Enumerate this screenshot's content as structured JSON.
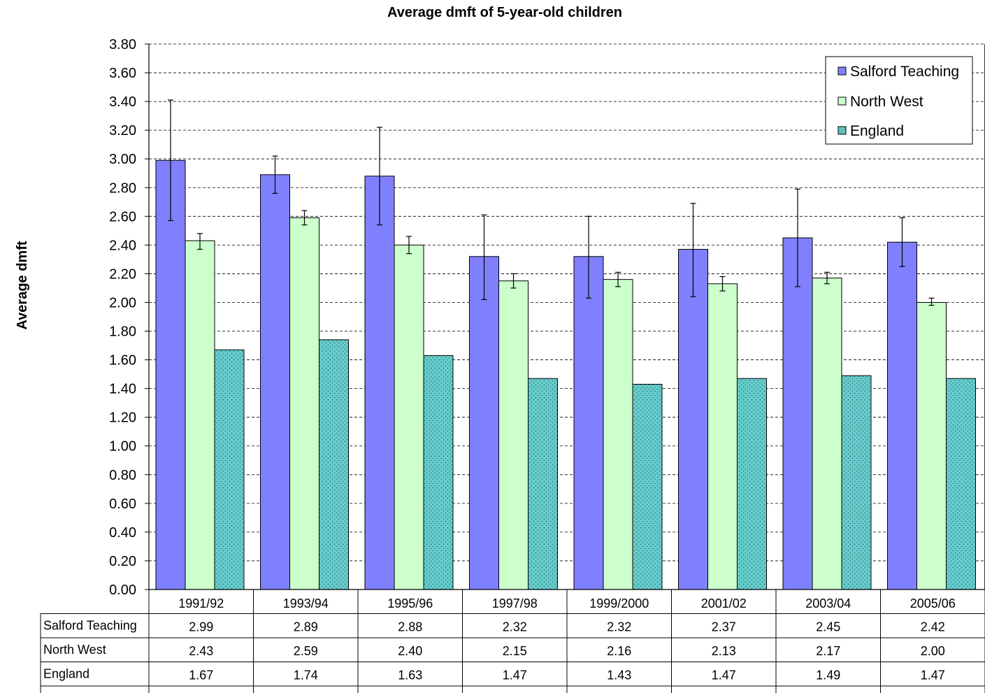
{
  "chart_data": {
    "type": "bar",
    "title": "Average dmft of 5-year-old children",
    "ylabel": "Average dmft",
    "xlabel": "",
    "ylim": [
      0,
      3.8
    ],
    "ytick_step": 0.2,
    "grid": "horizontal dashed",
    "legend": "top-right",
    "categories": [
      "1991/92",
      "1993/94",
      "1995/96",
      "1997/98",
      "1999/2000",
      "2001/02",
      "2003/04",
      "2005/06"
    ],
    "series": [
      {
        "name": "Salford Teaching",
        "color": "#8080ff",
        "values": [
          2.99,
          2.89,
          2.88,
          2.32,
          2.32,
          2.37,
          2.45,
          2.42
        ],
        "values_text": [
          "2.99",
          "2.89",
          "2.88",
          "2.32",
          "2.32",
          "2.37",
          "2.45",
          "2.42"
        ],
        "error_low": [
          2.57,
          2.76,
          2.54,
          2.02,
          2.03,
          2.04,
          2.11,
          2.25
        ],
        "error_high": [
          3.41,
          3.02,
          3.22,
          2.61,
          2.6,
          2.69,
          2.79,
          2.59
        ]
      },
      {
        "name": "North West",
        "color": "#ccffcc",
        "values": [
          2.43,
          2.59,
          2.4,
          2.15,
          2.16,
          2.13,
          2.17,
          2.0
        ],
        "values_text": [
          "2.43",
          "2.59",
          "2.40",
          "2.15",
          "2.16",
          "2.13",
          "2.17",
          "2.00"
        ],
        "error_low": [
          2.37,
          2.54,
          2.34,
          2.1,
          2.11,
          2.08,
          2.13,
          1.98
        ],
        "error_high": [
          2.48,
          2.64,
          2.46,
          2.2,
          2.21,
          2.18,
          2.21,
          2.03
        ]
      },
      {
        "name": "England",
        "color": "#66cccc",
        "pattern": "dotted",
        "values": [
          1.67,
          1.74,
          1.63,
          1.47,
          1.43,
          1.47,
          1.49,
          1.47
        ],
        "values_text": [
          "1.67",
          "1.74",
          "1.63",
          "1.47",
          "1.43",
          "1.47",
          "1.49",
          "1.47"
        ]
      }
    ]
  }
}
